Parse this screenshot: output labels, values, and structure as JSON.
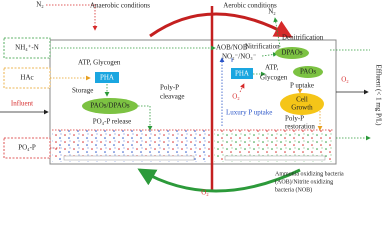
{
  "header": {
    "anaerobic": "Anaerobic conditions",
    "aerobic": "Aerobic conditions"
  },
  "inputs": {
    "nitrogen_gas": "N₂",
    "ammonium": "NH₄⁺-N",
    "acetate": "HAc",
    "influent": "Influent",
    "phosphate": "PO₄-P"
  },
  "anaerobic_zone": {
    "energy": "ATP, Glycogen",
    "pha": "PHA",
    "storage": "Storage",
    "organisms": "PAOs/DPAOs",
    "cleavage": [
      "Poly-P",
      "cleavage"
    ],
    "release": "PO₄-P release"
  },
  "aerobic_zone": {
    "aob_nob": "AOB/NOB",
    "nitrification": "Nitrification",
    "nox": "NO₂⁻/NO₃⁻",
    "nitrogen_gas": "N₂",
    "denitrification": "Denitrification",
    "dpaos": "DPAOs",
    "paos": "PAOs",
    "pha": "PHA",
    "energy": [
      "ATP,",
      "Glycogen"
    ],
    "uptake": "P uptake",
    "growth": [
      "Cell",
      "Growth"
    ],
    "restoration": [
      "Poly-P",
      "restoration"
    ],
    "oxygen": "O₂",
    "luxury": "Luxury P uptake",
    "side_oxygen": "O₂"
  },
  "footer": {
    "oxygen": "O₂",
    "bacteria": [
      "Ammonia oxidizing bacteria",
      "(AOB)/Nitrite oxidizing",
      "bacteria (NOB)"
    ],
    "effluent": "Effluent (< 1 mg P/L)"
  }
}
